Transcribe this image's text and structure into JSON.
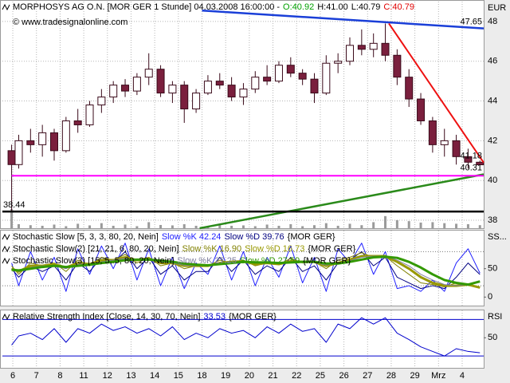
{
  "header": {
    "title": "MORPHOSYS AG O.N. [MOR GER  1 Stunde] 04.03.2008 16:00:00 -",
    "open": "O:40.92",
    "high": "H:41.00",
    "low": "L:40.79",
    "close": "C:40.79"
  },
  "watermark": "© www.tradesignalonline.com",
  "chart_data": [
    {
      "type": "candlestick",
      "y_axis_label": "EUR",
      "x": [
        -0.05,
        0.25,
        0.75,
        1.25,
        1.75,
        2.25,
        2.75,
        3.25,
        3.75,
        4.25,
        4.75,
        5.25,
        5.75,
        6.25,
        6.75,
        7.25,
        7.75,
        8.25,
        8.75,
        9.25,
        9.75,
        10.25,
        10.75,
        11.25,
        11.75,
        12.25,
        12.75,
        13.25,
        13.75,
        14.25,
        14.75,
        15.25,
        15.75,
        16.25,
        16.75,
        17.25,
        17.75,
        18.25,
        18.75,
        19.25,
        19.75
      ],
      "open": [
        41.5,
        40.8,
        42.0,
        41.8,
        42.4,
        41.5,
        43.0,
        42.8,
        43.8,
        44.2,
        44.8,
        44.5,
        45.2,
        45.6,
        44.4,
        44.8,
        43.6,
        44.4,
        45.0,
        44.8,
        44.2,
        44.6,
        45.2,
        45.0,
        45.8,
        45.4,
        45.1,
        44.4,
        45.9,
        46.0,
        46.8,
        46.6,
        46.9,
        46.3,
        45.2,
        44.1,
        43.0,
        41.8,
        42.0,
        41.2,
        40.92
      ],
      "high": [
        41.8,
        42.3,
        42.6,
        42.8,
        42.6,
        43.2,
        43.6,
        44.0,
        44.6,
        45.0,
        45.1,
        45.4,
        46.4,
        45.8,
        45.0,
        45.0,
        44.6,
        45.3,
        45.4,
        45.2,
        44.9,
        45.5,
        45.8,
        46.0,
        46.2,
        45.6,
        45.4,
        46.3,
        46.4,
        47.2,
        47.6,
        47.4,
        47.9,
        46.6,
        45.6,
        44.4,
        43.2,
        42.6,
        42.3,
        41.6,
        41.0
      ],
      "low": [
        38.44,
        40.6,
        41.4,
        41.2,
        41.0,
        41.4,
        42.4,
        42.7,
        43.4,
        43.9,
        44.2,
        44.3,
        44.8,
        44.2,
        43.9,
        42.9,
        43.4,
        44.3,
        44.6,
        44.0,
        43.8,
        44.4,
        44.8,
        44.9,
        45.2,
        44.8,
        43.9,
        44.3,
        45.4,
        45.8,
        46.3,
        46.2,
        46.0,
        44.8,
        43.7,
        42.8,
        41.4,
        41.2,
        40.8,
        40.6,
        40.79
      ],
      "close": [
        40.8,
        42.0,
        41.8,
        42.4,
        41.5,
        43.0,
        42.8,
        43.8,
        44.2,
        44.8,
        44.5,
        45.2,
        45.6,
        44.4,
        44.8,
        43.6,
        44.4,
        45.0,
        44.8,
        44.2,
        44.6,
        45.2,
        45.0,
        45.8,
        45.4,
        45.1,
        44.4,
        45.9,
        46.0,
        46.8,
        46.6,
        46.9,
        46.3,
        45.2,
        44.1,
        43.0,
        41.8,
        42.0,
        41.2,
        40.92,
        40.79
      ],
      "volume": [
        95,
        20,
        15,
        12,
        18,
        10,
        22,
        14,
        25,
        12,
        18,
        10,
        30,
        16,
        14,
        20,
        12,
        10,
        15,
        12,
        14,
        10,
        18,
        12,
        20,
        10,
        15,
        25,
        12,
        22,
        15,
        30,
        60,
        40,
        35,
        28,
        30,
        25,
        22,
        20,
        15
      ],
      "up_color": "#ffffff",
      "down_color": "#7a1f3d",
      "outline_color": "#3a0a1a",
      "volume_color": "#9a9a9a",
      "xlim": [
        -0.44,
        19.91
      ],
      "xticks": [
        {
          "value": 0,
          "label": "6"
        },
        {
          "value": 1,
          "label": "7"
        },
        {
          "value": 2,
          "label": "8"
        },
        {
          "value": 3,
          "label": "11"
        },
        {
          "value": 4,
          "label": "12"
        },
        {
          "value": 5,
          "label": "13"
        },
        {
          "value": 6,
          "label": "14"
        },
        {
          "value": 7,
          "label": "15"
        },
        {
          "value": 8,
          "label": "18"
        },
        {
          "value": 9,
          "label": "19"
        },
        {
          "value": 10,
          "label": "20"
        },
        {
          "value": 11,
          "label": "21"
        },
        {
          "value": 12,
          "label": "22"
        },
        {
          "value": 13,
          "label": "25"
        },
        {
          "value": 14,
          "label": "26"
        },
        {
          "value": 15,
          "label": "27"
        },
        {
          "value": 16,
          "label": "28"
        },
        {
          "value": 17,
          "label": "29"
        },
        {
          "value": 18,
          "label": "Mrz"
        },
        {
          "value": 19,
          "label": "4"
        }
      ],
      "ylim": [
        37.6,
        49.0
      ],
      "yticks": [
        38,
        40,
        42,
        44,
        46,
        48
      ],
      "grid": true,
      "lines": [
        {
          "color": "#1a3fd8",
          "width": 2.5,
          "x": [
            8.0,
            19.91
          ],
          "y": [
            48.55,
            47.65
          ],
          "label": "47.65",
          "label_at": "end"
        },
        {
          "color": "#ee1111",
          "width": 2,
          "x": [
            15.9,
            19.91
          ],
          "y": [
            47.9,
            40.9
          ],
          "label": "41.18",
          "label_at": "end"
        },
        {
          "color": "#2a8a1a",
          "width": 2.5,
          "x": [
            7.9,
            19.91
          ],
          "y": [
            37.6,
            40.31
          ],
          "label": "40.31",
          "label_at": "end"
        },
        {
          "color": "#ff00ff",
          "width": 2,
          "x": [
            -0.05,
            19.91
          ],
          "y": [
            40.24,
            40.24
          ]
        },
        {
          "color": "#000000",
          "width": 2.5,
          "x": [
            -0.44,
            19.91
          ],
          "y": [
            38.44,
            38.44
          ],
          "label": "38.44",
          "label_at": "start"
        }
      ]
    },
    {
      "type": "line",
      "y_axis_label": "SS...",
      "ylim": [
        -15,
        117
      ],
      "yticks": [
        0,
        50
      ],
      "levels": [
        20,
        80
      ],
      "level_color": "#777777",
      "legend_rows": [
        {
          "title": "Stochastic Slow [5, 3, 3, 80, 20, Nein]",
          "symbol": "{MOR GER}"
        },
        {
          "title": "Stochastic Slow(2) [21, 21, 6, 80, 20, Nein]",
          "symbol": "{MOR GER}"
        },
        {
          "title": "Stochastic Slow(3) [15, 5, 5, 80, 20, Nein]",
          "symbol": "{MOR GER}"
        }
      ],
      "series": [
        {
          "name": "Slow %K 42.24",
          "color": "#2020ff",
          "width": 1,
          "values": [
            60,
            20,
            80,
            30,
            70,
            10,
            85,
            40,
            90,
            50,
            95,
            30,
            85,
            20,
            70,
            15,
            60,
            40,
            90,
            30,
            80,
            20,
            70,
            35,
            90,
            25,
            70,
            10,
            85,
            60,
            95,
            40,
            80,
            15,
            20,
            10,
            30,
            10,
            60,
            85,
            42.24
          ]
        },
        {
          "name": "Slow %D 39.76",
          "color": "#000080",
          "width": 1,
          "values": [
            50,
            35,
            55,
            45,
            55,
            30,
            60,
            45,
            70,
            60,
            80,
            50,
            70,
            40,
            55,
            30,
            45,
            45,
            70,
            45,
            65,
            40,
            55,
            45,
            70,
            45,
            55,
            30,
            60,
            65,
            80,
            55,
            70,
            35,
            25,
            15,
            20,
            15,
            35,
            60,
            39.76
          ]
        },
        {
          "name": "Slow %K 16.90",
          "color": "#808000",
          "width": 1,
          "values": [
            55,
            40,
            60,
            55,
            60,
            45,
            65,
            55,
            70,
            65,
            75,
            60,
            70,
            55,
            60,
            50,
            55,
            55,
            65,
            60,
            65,
            55,
            60,
            58,
            68,
            60,
            62,
            50,
            65,
            70,
            78,
            70,
            72,
            55,
            40,
            25,
            22,
            18,
            25,
            22,
            16.9
          ]
        },
        {
          "name": "Slow %D 16.73",
          "color": "#999900",
          "width": 3,
          "values": [
            50,
            45,
            55,
            55,
            58,
            52,
            60,
            58,
            65,
            65,
            70,
            65,
            68,
            60,
            60,
            55,
            55,
            55,
            60,
            62,
            63,
            58,
            60,
            58,
            63,
            62,
            62,
            55,
            60,
            66,
            72,
            72,
            72,
            62,
            50,
            35,
            25,
            20,
            20,
            22,
            16.73
          ]
        },
        {
          "name": "Slow %K 27.25",
          "color": "#8080a0",
          "width": 1,
          "values": [
            50,
            45,
            52,
            55,
            55,
            50,
            58,
            58,
            62,
            65,
            68,
            65,
            66,
            62,
            60,
            56,
            55,
            56,
            60,
            62,
            62,
            60,
            60,
            59,
            62,
            62,
            61,
            56,
            60,
            64,
            70,
            72,
            72,
            65,
            55,
            40,
            30,
            22,
            20,
            22,
            27.25
          ]
        },
        {
          "name": "Slow %D 27.59",
          "color": "#339900",
          "width": 3,
          "values": [
            48,
            47,
            50,
            53,
            55,
            53,
            55,
            57,
            60,
            62,
            65,
            66,
            66,
            64,
            62,
            59,
            57,
            56,
            58,
            60,
            62,
            61,
            61,
            60,
            61,
            62,
            62,
            59,
            59,
            62,
            66,
            70,
            71,
            69,
            62,
            52,
            40,
            30,
            25,
            22,
            27.59
          ]
        }
      ]
    },
    {
      "type": "line",
      "y_axis_label": "RSI",
      "ylim": [
        17,
        80
      ],
      "yticks": [
        50
      ],
      "levels": [
        30,
        70
      ],
      "level_color": "#0000cc",
      "legend_rows": [
        {
          "title": "Relative Strength Index [Close, 14, 30, 70, Nein]",
          "symbol": "{MOR GER}"
        }
      ],
      "series": [
        {
          "name": "33.53",
          "color": "#0000cc",
          "width": 1,
          "values": [
            42,
            52,
            55,
            48,
            60,
            45,
            60,
            55,
            65,
            58,
            62,
            55,
            60,
            52,
            62,
            48,
            55,
            50,
            60,
            55,
            58,
            50,
            62,
            55,
            65,
            57,
            60,
            45,
            65,
            60,
            72,
            65,
            72,
            55,
            48,
            40,
            35,
            30,
            38,
            35,
            33.53
          ]
        }
      ]
    }
  ]
}
